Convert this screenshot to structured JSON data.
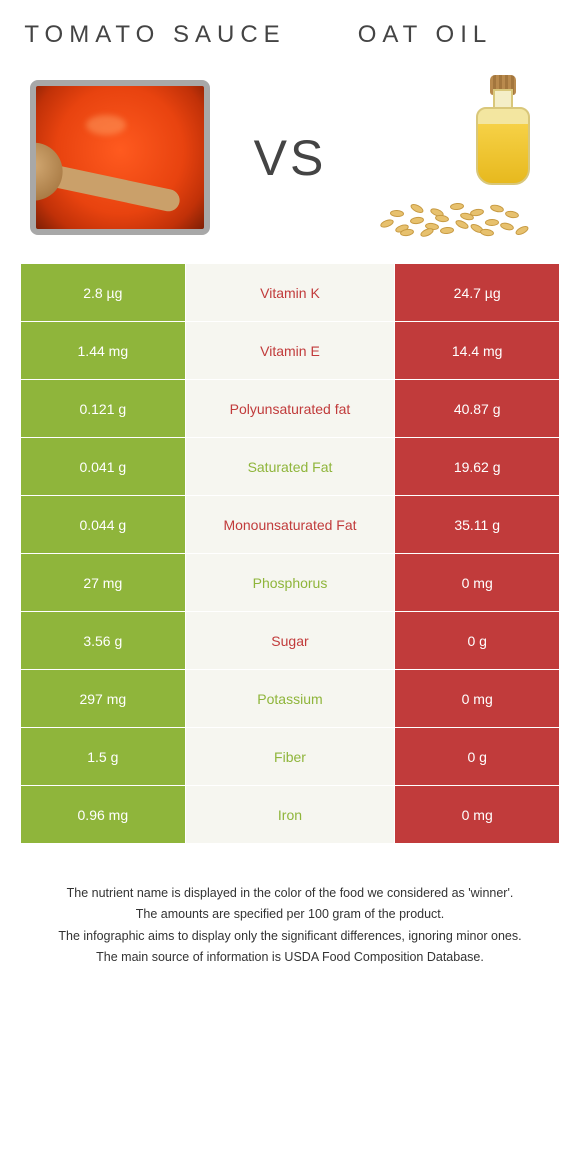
{
  "header": {
    "left_title": "Tomato sauce",
    "right_title": "Oat oil",
    "vs_label": "VS"
  },
  "colors": {
    "left_food": "#8fb53b",
    "right_food": "#c13b3b",
    "mid_bg": "#f6f6f0",
    "left_text": "#8fb53b",
    "right_text": "#c13b3b"
  },
  "table": {
    "rows": [
      {
        "label": "Vitamin K",
        "left": "2.8 µg",
        "right": "24.7 µg",
        "winner": "right"
      },
      {
        "label": "Vitamin E",
        "left": "1.44 mg",
        "right": "14.4 mg",
        "winner": "right"
      },
      {
        "label": "Polyunsaturated fat",
        "left": "0.121 g",
        "right": "40.87 g",
        "winner": "right"
      },
      {
        "label": "Saturated Fat",
        "left": "0.041 g",
        "right": "19.62 g",
        "winner": "left"
      },
      {
        "label": "Monounsaturated Fat",
        "left": "0.044 g",
        "right": "35.11 g",
        "winner": "right"
      },
      {
        "label": "Phosphorus",
        "left": "27 mg",
        "right": "0 mg",
        "winner": "left"
      },
      {
        "label": "Sugar",
        "left": "3.56 g",
        "right": "0 g",
        "winner": "right"
      },
      {
        "label": "Potassium",
        "left": "297 mg",
        "right": "0 mg",
        "winner": "left"
      },
      {
        "label": "Fiber",
        "left": "1.5 g",
        "right": "0 g",
        "winner": "left"
      },
      {
        "label": "Iron",
        "left": "0.96 mg",
        "right": "0 mg",
        "winner": "left"
      }
    ]
  },
  "footer": {
    "lines": [
      "The nutrient name is displayed in the color of the food we considered as 'winner'.",
      "The amounts are specified per 100 gram of the product.",
      "The infographic aims to display only the significant differences, ignoring minor ones.",
      "The main source of information is USDA Food Composition Database."
    ]
  }
}
